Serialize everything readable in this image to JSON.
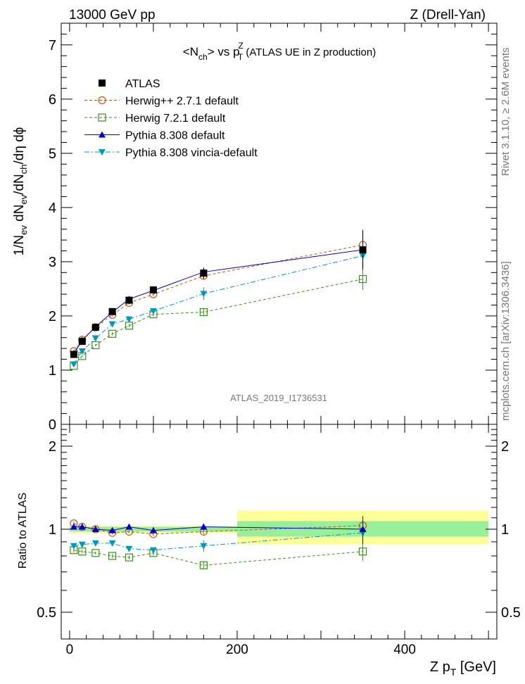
{
  "header": {
    "left": "13000 GeV pp",
    "right": "Z (Drell-Yan)"
  },
  "side_labels": {
    "right_top": "Rivet 3.1.10, ≥ 2.6M events",
    "right_bottom": "mcplots.cern.ch [arXiv:1306.3436]"
  },
  "chart_data": {
    "type": "line",
    "title": {
      "main": "<N",
      "sub1": "ch",
      "mid": "> vs p",
      "sup": "Z",
      "sub2": "T",
      "tail": " (ATLAS UE in Z production)"
    },
    "analysis_label": "ATLAS_2019_I1736531",
    "ylabel": {
      "a": "1/N",
      "a_sub": "ev",
      "b": " dN",
      "b_sub": "ev",
      "c": "/dN",
      "c_sub": "ch",
      "d": "/dη dϕ"
    },
    "ratio_ylabel": "Ratio to ATLAS",
    "xlabel": {
      "a": "Z p",
      "a_sub": "T",
      "b": " [GeV]"
    },
    "xlim": [
      -10,
      510
    ],
    "ylim": [
      0,
      7.4
    ],
    "ratio_ylim": [
      0.4,
      2.4
    ],
    "x_ticks": [
      "0",
      "200",
      "400"
    ],
    "y_ticks": [
      "0",
      "1",
      "2",
      "3",
      "4",
      "5",
      "6",
      "7"
    ],
    "ratio_ticks": [
      "0.5",
      "1",
      "2"
    ],
    "x": [
      5,
      15,
      31,
      51,
      71,
      100,
      160,
      350
    ],
    "data_band": {
      "inner": [
        0.98,
        1.02,
        0.98,
        1.02,
        0.95,
        1.05
      ],
      "inner_x": [
        0,
        200,
        200,
        500,
        500,
        500
      ],
      "segments": [
        {
          "x0": 0,
          "x1": 200,
          "inner": [
            0.98,
            1.02
          ],
          "outer": [
            0.97,
            1.03
          ]
        },
        {
          "x0": 200,
          "x1": 500,
          "inner": [
            0.94,
            1.07
          ],
          "outer": [
            0.88,
            1.17
          ]
        }
      ]
    },
    "series": [
      {
        "name": "ATLAS",
        "values": [
          1.29,
          1.53,
          1.79,
          2.08,
          2.29,
          2.48,
          2.79,
          3.22
        ],
        "errors": [
          0.03,
          0.03,
          0.03,
          0.04,
          0.05,
          0.05,
          0.1,
          0.35
        ],
        "color": "#000000",
        "marker": "square-filled",
        "ratio": [
          1,
          1,
          1,
          1,
          1,
          1,
          1,
          1
        ]
      },
      {
        "name": "Herwig++ 2.7.1 default",
        "values": [
          1.35,
          1.56,
          1.79,
          2.02,
          2.24,
          2.4,
          2.74,
          3.31
        ],
        "errors": [
          0.02,
          0.02,
          0.02,
          0.03,
          0.03,
          0.04,
          0.06,
          0.26
        ],
        "color": "#b35a1f",
        "marker": "circle-open",
        "dash": "4,3",
        "ratio": [
          1.05,
          1.02,
          1.0,
          0.97,
          0.98,
          0.96,
          0.98,
          1.03
        ]
      },
      {
        "name": "Herwig 7.2.1 default",
        "values": [
          1.08,
          1.26,
          1.46,
          1.67,
          1.82,
          2.03,
          2.07,
          2.68
        ],
        "errors": [
          0.02,
          0.02,
          0.02,
          0.03,
          0.03,
          0.04,
          0.06,
          0.2
        ],
        "color": "#3d8f1e",
        "marker": "square-open",
        "dash": "4,3",
        "ratio": [
          0.84,
          0.83,
          0.82,
          0.8,
          0.79,
          0.82,
          0.74,
          0.83
        ]
      },
      {
        "name": "Pythia 8.308 default",
        "values": [
          1.3,
          1.55,
          1.8,
          2.07,
          2.31,
          2.47,
          2.81,
          3.22
        ],
        "errors": [
          0.02,
          0.02,
          0.02,
          0.03,
          0.03,
          0.04,
          0.08,
          0.37
        ],
        "color": "#0000cc",
        "marker": "triangle-up-filled",
        "ratio": [
          1.02,
          1.02,
          1.0,
          0.99,
          1.02,
          0.99,
          1.02,
          1.0
        ]
      },
      {
        "name": "Pythia 8.308 vincia-default",
        "values": [
          1.11,
          1.35,
          1.59,
          1.85,
          1.94,
          2.09,
          2.41,
          3.11
        ],
        "errors": [
          0.02,
          0.02,
          0.02,
          0.03,
          0.03,
          0.04,
          0.12,
          0.26
        ],
        "color": "#0099b8",
        "marker": "triangle-down-filled",
        "dash": "7,3,2,3",
        "ratio": [
          0.87,
          0.88,
          0.89,
          0.89,
          0.85,
          0.84,
          0.87,
          0.97
        ]
      }
    ]
  }
}
